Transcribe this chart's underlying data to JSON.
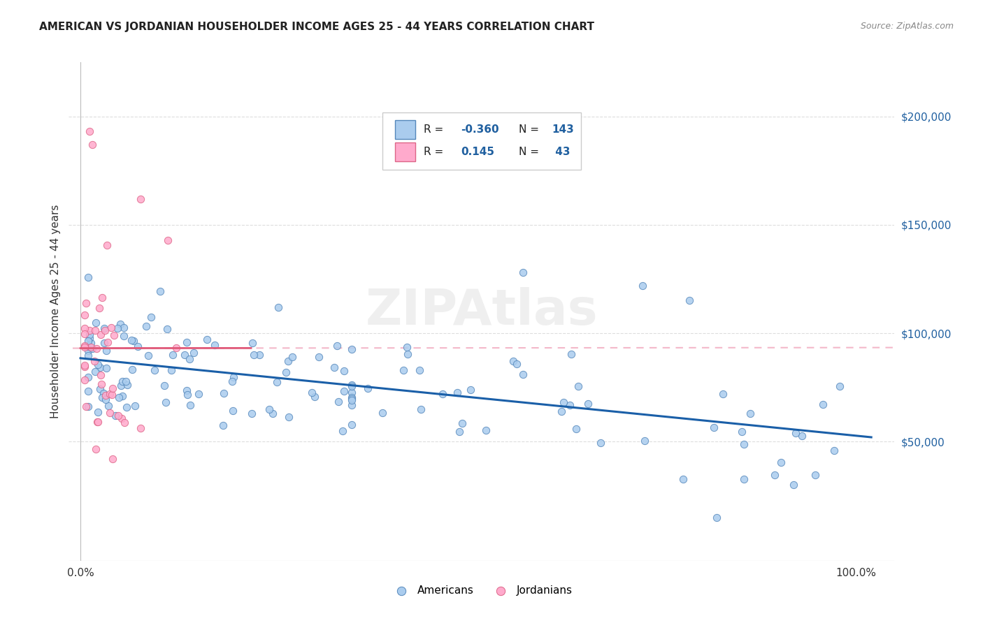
{
  "title": "AMERICAN VS JORDANIAN HOUSEHOLDER INCOME AGES 25 - 44 YEARS CORRELATION CHART",
  "source": "Source: ZipAtlas.com",
  "ylabel": "Householder Income Ages 25 - 44 years",
  "background_color": "#ffffff",
  "watermark": "ZIPAtlas",
  "y_ticks": [
    50000,
    100000,
    150000,
    200000
  ],
  "y_tick_labels": [
    "$50,000",
    "$100,000",
    "$150,000",
    "$200,000"
  ],
  "ylim": [
    -5000,
    225000
  ],
  "xlim": [
    -0.015,
    1.05
  ],
  "american_color": "#aaccee",
  "american_edge_color": "#5588bb",
  "jordanian_color": "#ffaacc",
  "jordanian_edge_color": "#dd6688",
  "american_trendline_color": "#1a5fa8",
  "jordanian_trendline_color": "#e05878",
  "jordanian_dashed_color": "#f0a0b8",
  "legend_border_color": "#cccccc",
  "grid_color": "#dddddd",
  "title_color": "#222222",
  "source_color": "#888888",
  "tick_color": "#2060a0",
  "R_text_color": "#2060a0",
  "label_color": "#333333"
}
